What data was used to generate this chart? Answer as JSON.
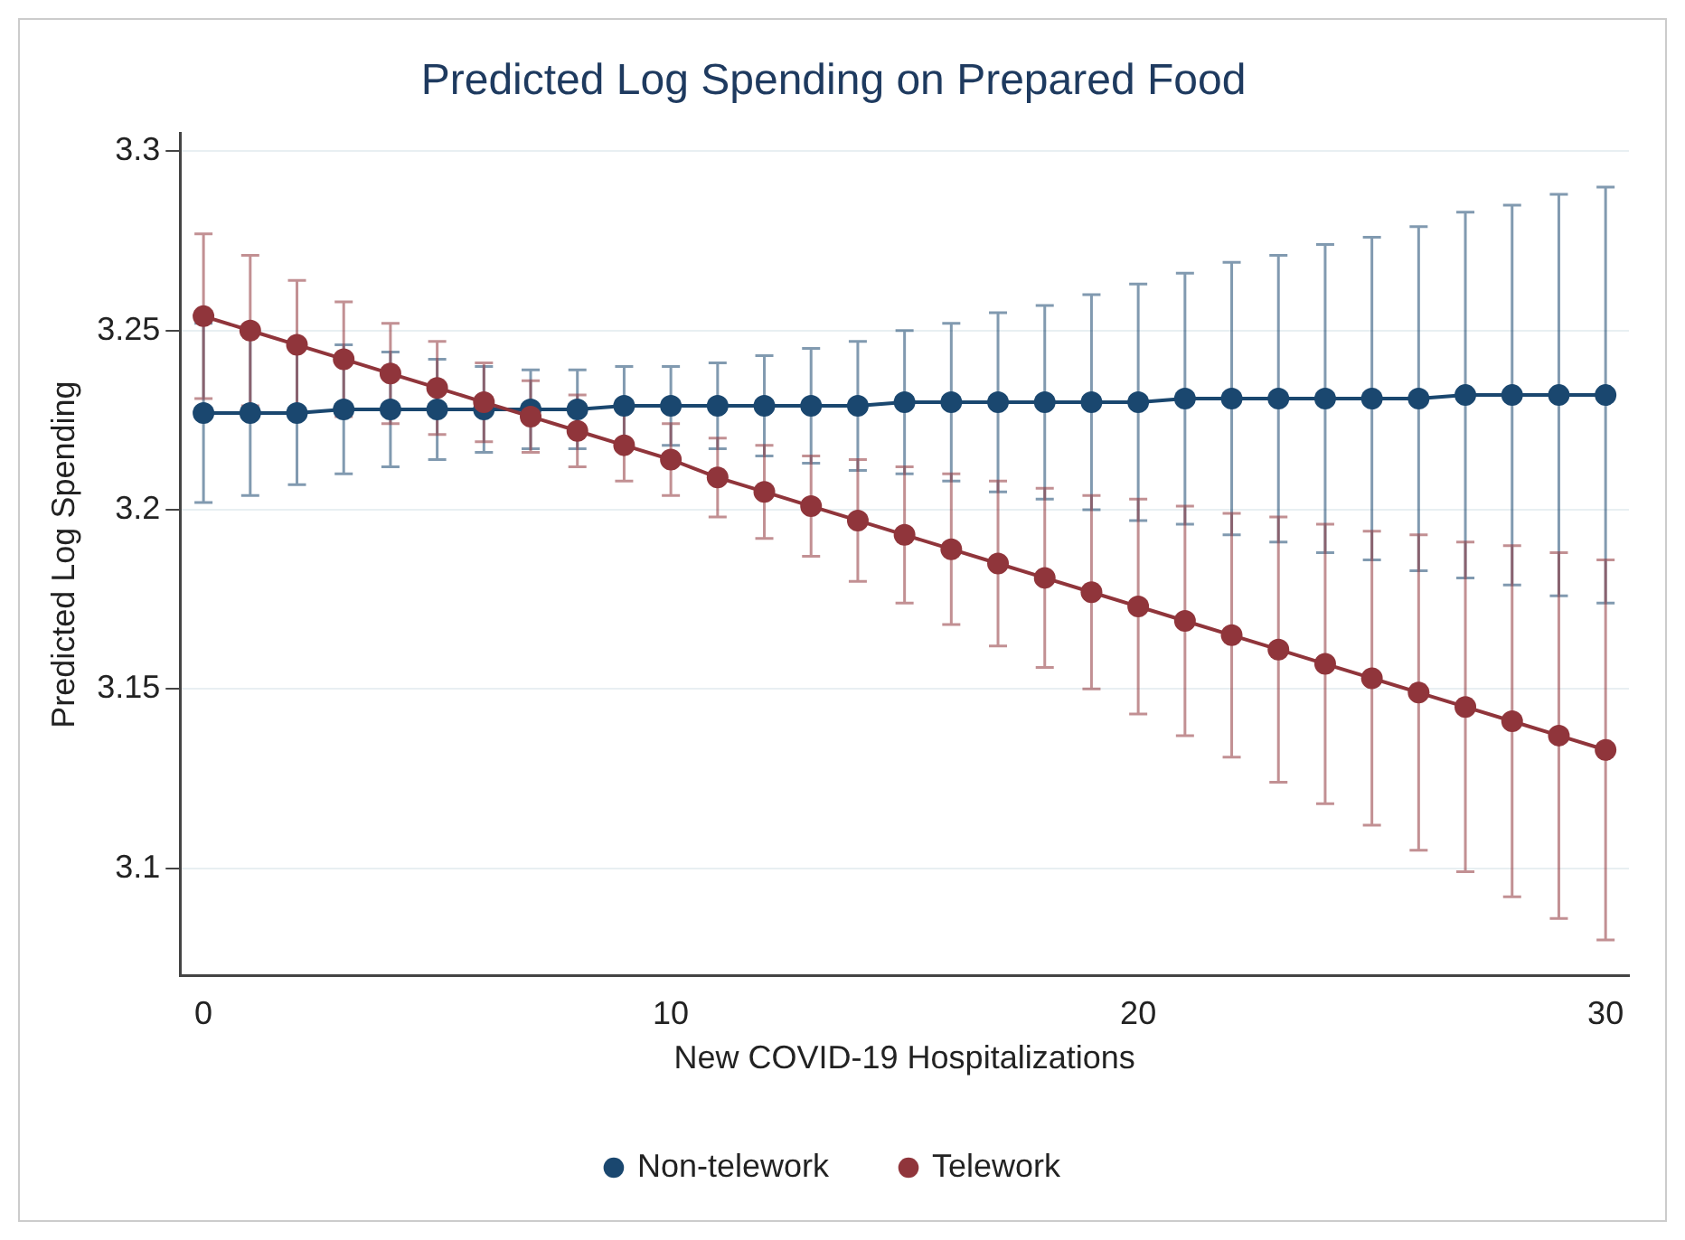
{
  "chart_data": {
    "type": "line",
    "title": "Predicted Log Spending on Prepared Food",
    "xlabel": "New COVID-19 Hospitalizations",
    "ylabel": "Predicted Log Spending",
    "x": [
      0,
      1,
      2,
      3,
      4,
      5,
      6,
      7,
      8,
      9,
      10,
      11,
      12,
      13,
      14,
      15,
      16,
      17,
      18,
      19,
      20,
      21,
      22,
      23,
      24,
      25,
      26,
      27,
      28,
      29,
      30
    ],
    "series": [
      {
        "name": "Non-telework",
        "color": "#1a476f",
        "values": [
          3.227,
          3.227,
          3.227,
          3.228,
          3.228,
          3.228,
          3.228,
          3.228,
          3.228,
          3.229,
          3.229,
          3.229,
          3.229,
          3.229,
          3.229,
          3.23,
          3.23,
          3.23,
          3.23,
          3.23,
          3.23,
          3.231,
          3.231,
          3.231,
          3.231,
          3.231,
          3.231,
          3.232,
          3.232,
          3.232,
          3.232
        ],
        "errors": [
          0.025,
          0.023,
          0.02,
          0.018,
          0.016,
          0.014,
          0.012,
          0.011,
          0.011,
          0.011,
          0.011,
          0.012,
          0.014,
          0.016,
          0.018,
          0.02,
          0.022,
          0.025,
          0.027,
          0.03,
          0.033,
          0.035,
          0.038,
          0.04,
          0.043,
          0.045,
          0.048,
          0.051,
          0.053,
          0.056,
          0.058
        ]
      },
      {
        "name": "Telework",
        "color": "#90353b",
        "values": [
          3.254,
          3.25,
          3.246,
          3.242,
          3.238,
          3.234,
          3.23,
          3.226,
          3.222,
          3.218,
          3.214,
          3.209,
          3.205,
          3.201,
          3.197,
          3.193,
          3.189,
          3.185,
          3.181,
          3.177,
          3.173,
          3.169,
          3.165,
          3.161,
          3.157,
          3.153,
          3.149,
          3.145,
          3.141,
          3.137,
          3.133
        ],
        "errors": [
          0.023,
          0.021,
          0.018,
          0.016,
          0.014,
          0.013,
          0.011,
          0.01,
          0.01,
          0.01,
          0.01,
          0.011,
          0.013,
          0.014,
          0.017,
          0.019,
          0.021,
          0.023,
          0.025,
          0.027,
          0.03,
          0.032,
          0.034,
          0.037,
          0.039,
          0.041,
          0.044,
          0.046,
          0.049,
          0.051,
          0.053
        ]
      }
    ],
    "xlim": [
      -0.5,
      30.5
    ],
    "xticks": [
      0,
      10,
      20,
      30
    ],
    "ylim": [
      3.07,
      3.305
    ],
    "yticks": [
      3.1,
      3.15,
      3.2,
      3.25,
      3.3
    ],
    "grid": "y",
    "legend": "bottom",
    "marker": "circle",
    "line_style": "solid"
  }
}
